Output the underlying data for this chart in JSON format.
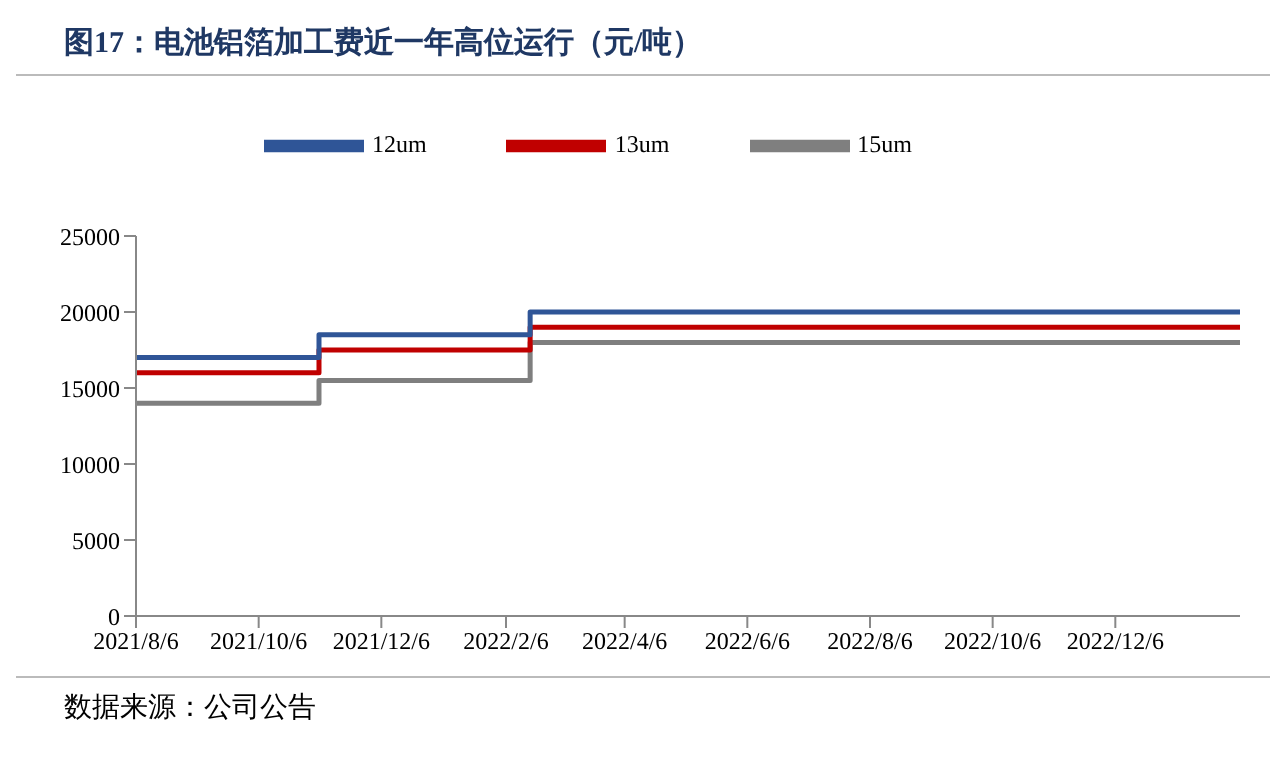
{
  "chart_data": {
    "type": "step",
    "title": "图17：电池铝箔加工费近一年高位运行（元/吨）",
    "x": [
      "2021-08-06",
      "2021-11-05",
      "2022-02-18",
      "2023-02-06"
    ],
    "series": [
      {
        "name": "15um",
        "color": "#7f7f7f",
        "values": [
          14000,
          15500,
          18000,
          18000
        ]
      },
      {
        "name": "13um",
        "color": "#c00000",
        "values": [
          16000,
          17500,
          19000,
          19000
        ]
      },
      {
        "name": "12um",
        "color": "#2f5597",
        "values": [
          17000,
          18500,
          20000,
          20000
        ]
      }
    ],
    "xlim": [
      "2021-08-06",
      "2023-02-06"
    ],
    "xticks": [
      {
        "value": "2021-08-06",
        "label": "2021/8/6"
      },
      {
        "value": "2021-10-06",
        "label": "2021/10/6"
      },
      {
        "value": "2021-12-06",
        "label": "2021/12/6"
      },
      {
        "value": "2022-02-06",
        "label": "2022/2/6"
      },
      {
        "value": "2022-04-06",
        "label": "2022/4/6"
      },
      {
        "value": "2022-06-06",
        "label": "2022/6/6"
      },
      {
        "value": "2022-08-06",
        "label": "2022/8/6"
      },
      {
        "value": "2022-10-06",
        "label": "2022/10/6"
      },
      {
        "value": "2022-12-06",
        "label": "2022/12/6"
      }
    ],
    "ylim": [
      0,
      25000
    ],
    "yticks": [
      0,
      5000,
      10000,
      15000,
      20000,
      25000
    ],
    "legend": "top",
    "grid": false,
    "annotations": [
      "数据来源：公司公告"
    ]
  }
}
